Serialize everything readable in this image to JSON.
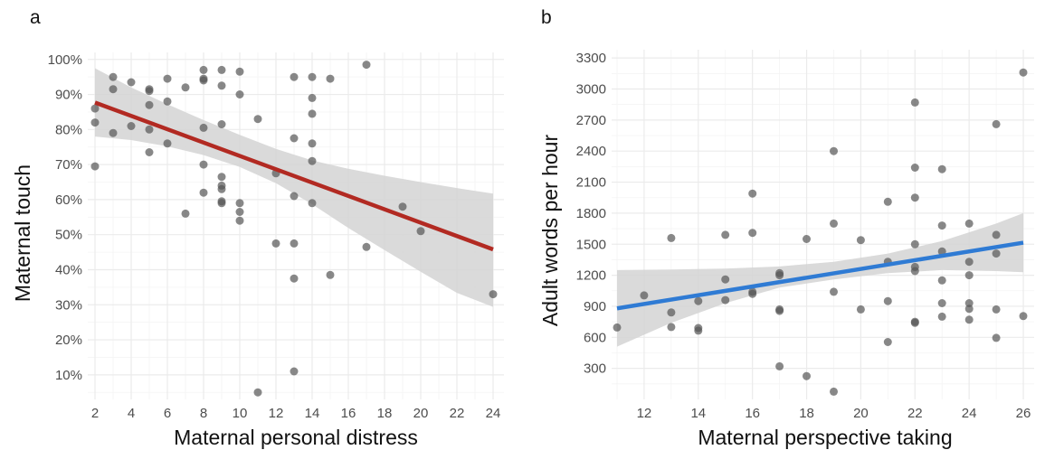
{
  "chart_data": [
    {
      "type": "scatter",
      "panel_label": "a",
      "title": "",
      "xlabel": "Maternal personal distress",
      "ylabel": "Maternal touch",
      "xlim": [
        1.6,
        24.6
      ],
      "ylim": [
        0.03,
        1.02
      ],
      "xticks": [
        2,
        4,
        6,
        8,
        10,
        12,
        14,
        16,
        18,
        20,
        22,
        24
      ],
      "yticks": [
        0.1,
        0.2,
        0.3,
        0.4,
        0.5,
        0.6,
        0.7,
        0.8,
        0.9,
        1.0
      ],
      "ytick_labels": [
        "10%",
        "20%",
        "30%",
        "40%",
        "50%",
        "60%",
        "70%",
        "80%",
        "90%",
        "100%"
      ],
      "grid": true,
      "point_color": "#555555",
      "line_color": "#b22a22",
      "band_color": "#d3d3d3",
      "points": [
        [
          2,
          0.86
        ],
        [
          2,
          0.82
        ],
        [
          2,
          0.695
        ],
        [
          3,
          0.95
        ],
        [
          3,
          0.915
        ],
        [
          3,
          0.79
        ],
        [
          4,
          0.935
        ],
        [
          4,
          0.81
        ],
        [
          5,
          0.915
        ],
        [
          5,
          0.91
        ],
        [
          5,
          0.87
        ],
        [
          5,
          0.8
        ],
        [
          5,
          0.735
        ],
        [
          6,
          0.945
        ],
        [
          6,
          0.88
        ],
        [
          6,
          0.76
        ],
        [
          7,
          0.92
        ],
        [
          7,
          0.56
        ],
        [
          8,
          0.97
        ],
        [
          8,
          0.945
        ],
        [
          8,
          0.94
        ],
        [
          8,
          0.805
        ],
        [
          8,
          0.7
        ],
        [
          8,
          0.62
        ],
        [
          9,
          0.97
        ],
        [
          9,
          0.925
        ],
        [
          9,
          0.815
        ],
        [
          9,
          0.665
        ],
        [
          9,
          0.64
        ],
        [
          9,
          0.63
        ],
        [
          9,
          0.595
        ],
        [
          9,
          0.59
        ],
        [
          10,
          0.965
        ],
        [
          10,
          0.9
        ],
        [
          10,
          0.59
        ],
        [
          10,
          0.565
        ],
        [
          10,
          0.54
        ],
        [
          11,
          0.83
        ],
        [
          11,
          0.05
        ],
        [
          12,
          0.675
        ],
        [
          12,
          0.475
        ],
        [
          13,
          0.95
        ],
        [
          13,
          0.775
        ],
        [
          13,
          0.61
        ],
        [
          13,
          0.475
        ],
        [
          13,
          0.375
        ],
        [
          13,
          0.11
        ],
        [
          14,
          0.95
        ],
        [
          14,
          0.89
        ],
        [
          14,
          0.845
        ],
        [
          14,
          0.76
        ],
        [
          14,
          0.71
        ],
        [
          14,
          0.59
        ],
        [
          15,
          0.945
        ],
        [
          15,
          0.385
        ],
        [
          17,
          0.985
        ],
        [
          17,
          0.465
        ],
        [
          19,
          0.58
        ],
        [
          20,
          0.51
        ],
        [
          24,
          0.33
        ]
      ],
      "fit": {
        "x0": 2,
        "y0": 0.877,
        "x1": 24,
        "y1": 0.458
      },
      "band": {
        "x": [
          2,
          4,
          6,
          8,
          10,
          12,
          14,
          16,
          18,
          20,
          22,
          24
        ],
        "upper": [
          0.975,
          0.92,
          0.872,
          0.827,
          0.785,
          0.745,
          0.712,
          0.688,
          0.668,
          0.65,
          0.633,
          0.617
        ],
        "lower": [
          0.78,
          0.77,
          0.752,
          0.727,
          0.693,
          0.647,
          0.587,
          0.519,
          0.456,
          0.394,
          0.334,
          0.294
        ]
      }
    },
    {
      "type": "scatter",
      "panel_label": "b",
      "title": "",
      "xlabel": "Maternal perspective taking",
      "ylabel": "Adult words per hour",
      "xlim": [
        10.8,
        26.4
      ],
      "ylim": [
        0,
        3380
      ],
      "xticks": [
        12,
        14,
        16,
        18,
        20,
        22,
        24,
        26
      ],
      "yticks": [
        300,
        600,
        900,
        1200,
        1500,
        1800,
        2100,
        2400,
        2700,
        3000,
        3300
      ],
      "ytick_labels": [
        "300",
        "600",
        "900",
        "1200",
        "1500",
        "1800",
        "2100",
        "2400",
        "2700",
        "3000",
        "3300"
      ],
      "grid": true,
      "point_color": "#555555",
      "line_color": "#2f7bd4",
      "band_color": "#d3d3d3",
      "points": [
        [
          11,
          695
        ],
        [
          12,
          1005
        ],
        [
          13,
          1560
        ],
        [
          13,
          840
        ],
        [
          13,
          700
        ],
        [
          14,
          950
        ],
        [
          14,
          690
        ],
        [
          14,
          665
        ],
        [
          15,
          1590
        ],
        [
          15,
          1160
        ],
        [
          15,
          960
        ],
        [
          16,
          1990
        ],
        [
          16,
          1610
        ],
        [
          16,
          1040
        ],
        [
          16,
          1020
        ],
        [
          17,
          1220
        ],
        [
          17,
          1200
        ],
        [
          17,
          870
        ],
        [
          17,
          855
        ],
        [
          17,
          320
        ],
        [
          18,
          1550
        ],
        [
          18,
          225
        ],
        [
          19,
          2400
        ],
        [
          19,
          1700
        ],
        [
          19,
          1040
        ],
        [
          19,
          75
        ],
        [
          20,
          1540
        ],
        [
          20,
          870
        ],
        [
          21,
          1910
        ],
        [
          21,
          1330
        ],
        [
          21,
          950
        ],
        [
          21,
          555
        ],
        [
          22,
          2870
        ],
        [
          22,
          2240
        ],
        [
          22,
          1950
        ],
        [
          22,
          1500
        ],
        [
          22,
          1280
        ],
        [
          22,
          1240
        ],
        [
          22,
          750
        ],
        [
          22,
          740
        ],
        [
          23,
          2225
        ],
        [
          23,
          1680
        ],
        [
          23,
          1430
        ],
        [
          23,
          1150
        ],
        [
          23,
          930
        ],
        [
          23,
          800
        ],
        [
          24,
          1700
        ],
        [
          24,
          1330
        ],
        [
          24,
          1200
        ],
        [
          24,
          930
        ],
        [
          24,
          875
        ],
        [
          24,
          770
        ],
        [
          25,
          2660
        ],
        [
          25,
          1590
        ],
        [
          25,
          1410
        ],
        [
          25,
          870
        ],
        [
          25,
          595
        ],
        [
          26,
          3160
        ],
        [
          26,
          805
        ]
      ],
      "fit": {
        "x0": 11,
        "y0": 880,
        "x1": 26,
        "y1": 1515
      },
      "band": {
        "x": [
          11,
          13,
          15,
          17,
          19,
          21,
          23,
          25,
          26
        ],
        "upper": [
          1250,
          1255,
          1265,
          1285,
          1330,
          1410,
          1530,
          1700,
          1800
        ],
        "lower": [
          510,
          740,
          930,
          1080,
          1160,
          1220,
          1250,
          1240,
          1230
        ]
      }
    }
  ]
}
